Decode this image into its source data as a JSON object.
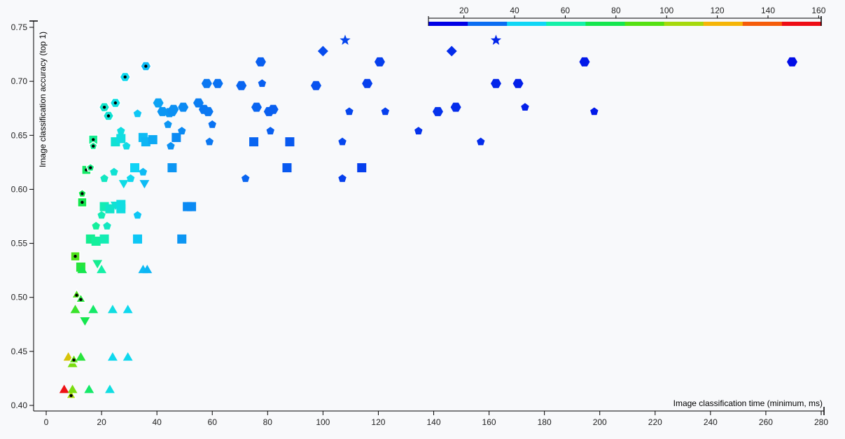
{
  "chart_data": {
    "type": "scatter",
    "title": "",
    "xlabel": "Image classification time (minimum, ms)",
    "ylabel": "Image classification accuracy (top 1)",
    "xlim": [
      -5,
      280
    ],
    "ylim": [
      0.395,
      0.75
    ],
    "x_ticks": [
      0,
      20,
      40,
      60,
      80,
      100,
      120,
      140,
      160,
      180,
      200,
      220,
      240,
      260,
      280
    ],
    "x_tick_labels": [
      "0",
      "20",
      "40",
      "60",
      "80",
      "100",
      "120",
      "140",
      "160",
      "180",
      "200",
      "220",
      "240",
      "260",
      "280"
    ],
    "y_ticks": [
      0.4,
      0.45,
      0.5,
      0.55,
      0.6,
      0.65,
      0.7,
      0.75
    ],
    "y_tick_labels": [
      "0.40",
      "0.45",
      "0.50",
      "0.55",
      "0.60",
      "0.65",
      "0.70",
      "0.75"
    ],
    "grid": false,
    "color_scale": {
      "range": [
        6,
        161
      ],
      "tick_values": [
        20,
        40,
        60,
        80,
        100,
        120,
        140,
        160
      ],
      "tick_labels": [
        "20",
        "40",
        "60",
        "80",
        "100",
        "120",
        "140",
        "160"
      ],
      "placement": "top-right",
      "colors": [
        "#0000e6",
        "#0a6df2",
        "#0fd6f5",
        "#14f0a8",
        "#15e64e",
        "#55e012",
        "#a5d90c",
        "#f5b507",
        "#f55c0a",
        "#ee0d16"
      ]
    },
    "points": [
      {
        "x": 6.5,
        "y": 0.414,
        "shape": "triangle",
        "c": 160
      },
      {
        "x": 9,
        "y": 0.409,
        "shape": "triangle",
        "c": 110,
        "dot": true
      },
      {
        "x": 9.5,
        "y": 0.414,
        "shape": "triangle",
        "c": 100
      },
      {
        "x": 8,
        "y": 0.444,
        "shape": "triangle",
        "c": 120
      },
      {
        "x": 9.5,
        "y": 0.438,
        "shape": "triangle",
        "c": 100
      },
      {
        "x": 10,
        "y": 0.442,
        "shape": "triangle",
        "c": 95,
        "dot": true
      },
      {
        "x": 12.5,
        "y": 0.444,
        "shape": "triangle",
        "c": 80
      },
      {
        "x": 15.5,
        "y": 0.414,
        "shape": "triangle",
        "c": 70
      },
      {
        "x": 23,
        "y": 0.414,
        "shape": "triangle",
        "c": 45
      },
      {
        "x": 24,
        "y": 0.444,
        "shape": "triangle",
        "c": 42
      },
      {
        "x": 29.5,
        "y": 0.444,
        "shape": "triangle",
        "c": 42
      },
      {
        "x": 10.5,
        "y": 0.488,
        "shape": "triangle",
        "c": 85
      },
      {
        "x": 17,
        "y": 0.488,
        "shape": "triangle",
        "c": 70
      },
      {
        "x": 24,
        "y": 0.488,
        "shape": "triangle",
        "c": 45
      },
      {
        "x": 29.5,
        "y": 0.488,
        "shape": "triangle",
        "c": 42
      },
      {
        "x": 14,
        "y": 0.479,
        "shape": "triangle-down",
        "c": 75
      },
      {
        "x": 11,
        "y": 0.502,
        "shape": "triangle",
        "c": 90,
        "dot": true
      },
      {
        "x": 12.5,
        "y": 0.498,
        "shape": "triangle",
        "c": 80,
        "dot": true
      },
      {
        "x": 10.5,
        "y": 0.538,
        "shape": "square",
        "c": 90,
        "dot": true
      },
      {
        "x": 12.5,
        "y": 0.528,
        "shape": "square",
        "c": 80
      },
      {
        "x": 13,
        "y": 0.525,
        "shape": "triangle",
        "c": 75
      },
      {
        "x": 16,
        "y": 0.554,
        "shape": "square",
        "c": 62
      },
      {
        "x": 18,
        "y": 0.552,
        "shape": "square",
        "c": 60
      },
      {
        "x": 21,
        "y": 0.554,
        "shape": "square",
        "c": 55
      },
      {
        "x": 18.5,
        "y": 0.532,
        "shape": "triangle-down",
        "c": 62
      },
      {
        "x": 20,
        "y": 0.525,
        "shape": "triangle",
        "c": 58
      },
      {
        "x": 33,
        "y": 0.554,
        "shape": "square",
        "c": 38
      },
      {
        "x": 35,
        "y": 0.525,
        "shape": "triangle",
        "c": 36
      },
      {
        "x": 36.5,
        "y": 0.525,
        "shape": "triangle",
        "c": 35
      },
      {
        "x": 49,
        "y": 0.554,
        "shape": "square",
        "c": 30
      },
      {
        "x": 13,
        "y": 0.588,
        "shape": "square",
        "c": 75,
        "dot": true
      },
      {
        "x": 13,
        "y": 0.596,
        "shape": "pentagon",
        "c": 75,
        "dot": true
      },
      {
        "x": 14.5,
        "y": 0.618,
        "shape": "square",
        "c": 70,
        "dot": true
      },
      {
        "x": 16,
        "y": 0.62,
        "shape": "pentagon",
        "c": 65,
        "dot": true
      },
      {
        "x": 18,
        "y": 0.566,
        "shape": "pentagon",
        "c": 60
      },
      {
        "x": 20,
        "y": 0.576,
        "shape": "pentagon",
        "c": 55
      },
      {
        "x": 22,
        "y": 0.566,
        "shape": "pentagon",
        "c": 52
      },
      {
        "x": 21,
        "y": 0.584,
        "shape": "square",
        "c": 55
      },
      {
        "x": 23,
        "y": 0.582,
        "shape": "square",
        "c": 50
      },
      {
        "x": 25,
        "y": 0.586,
        "shape": "triangle-down",
        "c": 48
      },
      {
        "x": 27,
        "y": 0.586,
        "shape": "square",
        "c": 45
      },
      {
        "x": 27,
        "y": 0.582,
        "shape": "square",
        "c": 45
      },
      {
        "x": 21,
        "y": 0.61,
        "shape": "pentagon",
        "c": 52
      },
      {
        "x": 24.5,
        "y": 0.616,
        "shape": "pentagon",
        "c": 48
      },
      {
        "x": 28,
        "y": 0.606,
        "shape": "triangle-down",
        "c": 44
      },
      {
        "x": 30.5,
        "y": 0.61,
        "shape": "pentagon",
        "c": 42
      },
      {
        "x": 32,
        "y": 0.62,
        "shape": "square",
        "c": 40
      },
      {
        "x": 33,
        "y": 0.576,
        "shape": "pentagon",
        "c": 38
      },
      {
        "x": 35,
        "y": 0.616,
        "shape": "pentagon",
        "c": 36
      },
      {
        "x": 35.5,
        "y": 0.606,
        "shape": "triangle-down",
        "c": 36
      },
      {
        "x": 45.5,
        "y": 0.62,
        "shape": "square",
        "c": 30
      },
      {
        "x": 51,
        "y": 0.584,
        "shape": "square",
        "c": 28
      },
      {
        "x": 52.5,
        "y": 0.584,
        "shape": "square",
        "c": 28
      },
      {
        "x": 72,
        "y": 0.61,
        "shape": "pentagon",
        "c": 22
      },
      {
        "x": 87,
        "y": 0.62,
        "shape": "square",
        "c": 20
      },
      {
        "x": 107,
        "y": 0.61,
        "shape": "pentagon",
        "c": 16
      },
      {
        "x": 114,
        "y": 0.62,
        "shape": "square",
        "c": 16
      },
      {
        "x": 17,
        "y": 0.646,
        "shape": "square",
        "c": 62,
        "dot": true
      },
      {
        "x": 17,
        "y": 0.64,
        "shape": "pentagon",
        "c": 62,
        "dot": true
      },
      {
        "x": 25,
        "y": 0.644,
        "shape": "square",
        "c": 48
      },
      {
        "x": 27,
        "y": 0.647,
        "shape": "square",
        "c": 45
      },
      {
        "x": 27,
        "y": 0.654,
        "shape": "pentagon",
        "c": 45
      },
      {
        "x": 29,
        "y": 0.64,
        "shape": "pentagon",
        "c": 44
      },
      {
        "x": 33,
        "y": 0.67,
        "shape": "pentagon",
        "c": 38
      },
      {
        "x": 35,
        "y": 0.648,
        "shape": "square",
        "c": 36
      },
      {
        "x": 36,
        "y": 0.644,
        "shape": "square",
        "c": 35
      },
      {
        "x": 38.5,
        "y": 0.646,
        "shape": "square",
        "c": 33
      },
      {
        "x": 21,
        "y": 0.676,
        "shape": "hexagon",
        "c": 50,
        "dot": true
      },
      {
        "x": 22.5,
        "y": 0.668,
        "shape": "hexagon",
        "c": 48,
        "dot": true
      },
      {
        "x": 25,
        "y": 0.68,
        "shape": "hexagon",
        "c": 45,
        "dot": true
      },
      {
        "x": 28.5,
        "y": 0.704,
        "shape": "hexagon",
        "c": 42,
        "dot": true
      },
      {
        "x": 36,
        "y": 0.714,
        "shape": "hexagon",
        "c": 36,
        "dot": true
      },
      {
        "x": 40.5,
        "y": 0.68,
        "shape": "hexagon",
        "c": 32
      },
      {
        "x": 42,
        "y": 0.672,
        "shape": "hexagon",
        "c": 30
      },
      {
        "x": 44,
        "y": 0.66,
        "shape": "pentagon",
        "c": 30
      },
      {
        "x": 44.5,
        "y": 0.671,
        "shape": "hexagon",
        "c": 30
      },
      {
        "x": 45.5,
        "y": 0.672,
        "shape": "hexagon",
        "c": 29
      },
      {
        "x": 46,
        "y": 0.674,
        "shape": "hexagon",
        "c": 29
      },
      {
        "x": 45,
        "y": 0.64,
        "shape": "pentagon",
        "c": 29
      },
      {
        "x": 47,
        "y": 0.648,
        "shape": "square",
        "c": 28
      },
      {
        "x": 49,
        "y": 0.654,
        "shape": "pentagon",
        "c": 28
      },
      {
        "x": 49.5,
        "y": 0.676,
        "shape": "hexagon",
        "c": 28
      },
      {
        "x": 55,
        "y": 0.68,
        "shape": "hexagon",
        "c": 26
      },
      {
        "x": 57,
        "y": 0.674,
        "shape": "hexagon",
        "c": 25
      },
      {
        "x": 58,
        "y": 0.698,
        "shape": "hexagon",
        "c": 25
      },
      {
        "x": 58.5,
        "y": 0.672,
        "shape": "hexagon",
        "c": 25
      },
      {
        "x": 59,
        "y": 0.644,
        "shape": "pentagon",
        "c": 25
      },
      {
        "x": 60,
        "y": 0.66,
        "shape": "pentagon",
        "c": 24
      },
      {
        "x": 62,
        "y": 0.698,
        "shape": "hexagon",
        "c": 24
      },
      {
        "x": 70.5,
        "y": 0.696,
        "shape": "hexagon",
        "c": 22
      },
      {
        "x": 75,
        "y": 0.644,
        "shape": "square",
        "c": 22
      },
      {
        "x": 76,
        "y": 0.676,
        "shape": "hexagon",
        "c": 22
      },
      {
        "x": 77.5,
        "y": 0.718,
        "shape": "hexagon",
        "c": 21
      },
      {
        "x": 78,
        "y": 0.698,
        "shape": "pentagon",
        "c": 21
      },
      {
        "x": 80.5,
        "y": 0.672,
        "shape": "hexagon",
        "c": 21
      },
      {
        "x": 81,
        "y": 0.654,
        "shape": "pentagon",
        "c": 21
      },
      {
        "x": 82,
        "y": 0.674,
        "shape": "hexagon",
        "c": 21
      },
      {
        "x": 88,
        "y": 0.644,
        "shape": "square",
        "c": 20
      },
      {
        "x": 97.5,
        "y": 0.696,
        "shape": "hexagon",
        "c": 19
      },
      {
        "x": 100,
        "y": 0.728,
        "shape": "diamond",
        "c": 18
      },
      {
        "x": 108,
        "y": 0.738,
        "shape": "star",
        "c": 17
      },
      {
        "x": 107,
        "y": 0.644,
        "shape": "pentagon",
        "c": 17
      },
      {
        "x": 109.5,
        "y": 0.672,
        "shape": "pentagon",
        "c": 17
      },
      {
        "x": 116,
        "y": 0.698,
        "shape": "hexagon",
        "c": 16
      },
      {
        "x": 120.5,
        "y": 0.718,
        "shape": "hexagon",
        "c": 16
      },
      {
        "x": 122.5,
        "y": 0.672,
        "shape": "pentagon",
        "c": 16
      },
      {
        "x": 134.5,
        "y": 0.654,
        "shape": "pentagon",
        "c": 14
      },
      {
        "x": 141.5,
        "y": 0.672,
        "shape": "hexagon",
        "c": 14
      },
      {
        "x": 146.5,
        "y": 0.728,
        "shape": "diamond",
        "c": 13
      },
      {
        "x": 148,
        "y": 0.676,
        "shape": "hexagon",
        "c": 13
      },
      {
        "x": 157,
        "y": 0.644,
        "shape": "pentagon",
        "c": 13
      },
      {
        "x": 162.5,
        "y": 0.738,
        "shape": "star",
        "c": 12
      },
      {
        "x": 162.5,
        "y": 0.698,
        "shape": "hexagon",
        "c": 12
      },
      {
        "x": 170.5,
        "y": 0.698,
        "shape": "hexagon",
        "c": 11
      },
      {
        "x": 173,
        "y": 0.676,
        "shape": "pentagon",
        "c": 11
      },
      {
        "x": 194.5,
        "y": 0.718,
        "shape": "hexagon",
        "c": 10
      },
      {
        "x": 198,
        "y": 0.672,
        "shape": "pentagon",
        "c": 10
      },
      {
        "x": 269.5,
        "y": 0.718,
        "shape": "hexagon",
        "c": 8
      }
    ]
  }
}
